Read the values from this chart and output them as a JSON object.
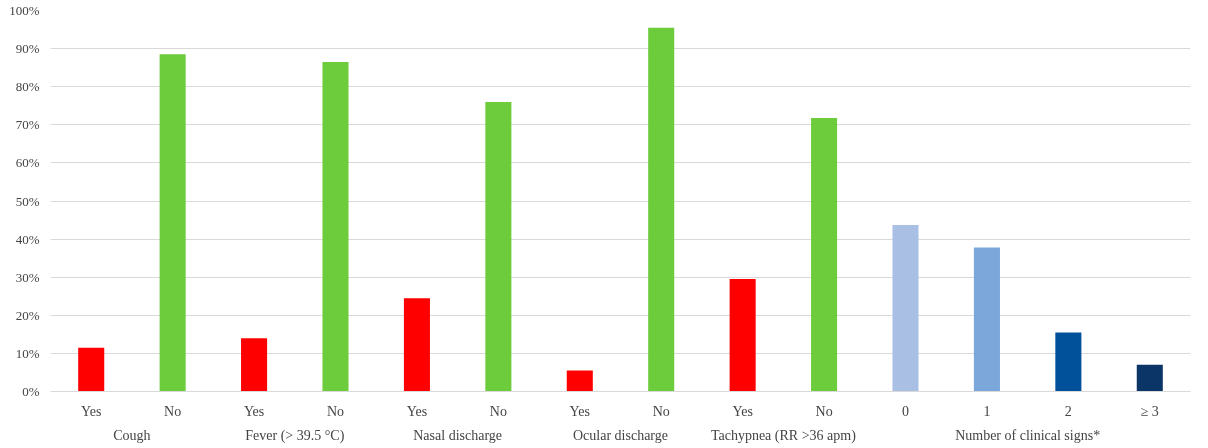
{
  "chart_data": {
    "type": "bar",
    "categories": [
      "Yes",
      "No",
      "Yes",
      "No",
      "Yes",
      "No",
      "Yes",
      "No",
      "Yes",
      "No",
      "0",
      "1",
      "2",
      "≥ 3"
    ],
    "series": [
      {
        "name": "Cough",
        "colors": [
          "#ff0000",
          "#6dcc3c",
          null,
          null,
          null,
          null,
          null,
          null,
          null,
          null,
          null,
          null,
          null,
          null
        ],
        "values": [
          11.5,
          88.5,
          null,
          null,
          null,
          null,
          null,
          null,
          null,
          null,
          null,
          null,
          null,
          null
        ]
      },
      {
        "name": "Fever (> 39.5 °C)",
        "colors": [
          null,
          null,
          "#ff0000",
          "#6dcc3c",
          null,
          null,
          null,
          null,
          null,
          null,
          null,
          null,
          null,
          null
        ],
        "values": [
          null,
          null,
          14,
          86.5,
          null,
          null,
          null,
          null,
          null,
          null,
          null,
          null,
          null,
          null
        ]
      },
      {
        "name": "Nasal discharge",
        "colors": [
          null,
          null,
          null,
          null,
          "#ff0000",
          "#6dcc3c",
          null,
          null,
          null,
          null,
          null,
          null,
          null,
          null
        ],
        "values": [
          null,
          null,
          null,
          null,
          24.5,
          76,
          null,
          null,
          null,
          null,
          null,
          null,
          null,
          null
        ]
      },
      {
        "name": "Ocular discharge",
        "colors": [
          null,
          null,
          null,
          null,
          null,
          null,
          "#ff0000",
          "#6dcc3c",
          null,
          null,
          null,
          null,
          null,
          null
        ],
        "values": [
          null,
          null,
          null,
          null,
          null,
          null,
          5.5,
          95.5,
          null,
          null,
          null,
          null,
          null,
          null
        ]
      },
      {
        "name": "Tachypnea (RR >36 apm)",
        "colors": [
          null,
          null,
          null,
          null,
          null,
          null,
          null,
          null,
          "#ff0000",
          "#6dcc3c",
          null,
          null,
          null,
          null
        ],
        "values": [
          null,
          null,
          null,
          null,
          null,
          null,
          null,
          null,
          29.5,
          71.8,
          null,
          null,
          null,
          null
        ]
      },
      {
        "name": "Number of clinical signs*",
        "colors": [
          null,
          null,
          null,
          null,
          null,
          null,
          null,
          null,
          null,
          null,
          "#a9c0e4",
          "#7ba7db",
          "#00509a",
          "#0b3566"
        ],
        "values": [
          null,
          null,
          null,
          null,
          null,
          null,
          null,
          null,
          null,
          null,
          43.7,
          37.8,
          15.5,
          7
        ]
      }
    ],
    "ylim": [
      0,
      100
    ],
    "yticks": [
      {
        "value": 0,
        "label": "0%"
      },
      {
        "value": 10,
        "label": "10%"
      },
      {
        "value": 20,
        "label": "20%"
      },
      {
        "value": 30,
        "label": "30%"
      },
      {
        "value": 40,
        "label": "40%"
      },
      {
        "value": 50,
        "label": "50%"
      },
      {
        "value": 60,
        "label": "60%"
      },
      {
        "value": 70,
        "label": "70%"
      },
      {
        "value": 80,
        "label": "80%"
      },
      {
        "value": 90,
        "label": "90%"
      },
      {
        "value": 100,
        "label": "100%"
      }
    ],
    "grid": "y"
  }
}
